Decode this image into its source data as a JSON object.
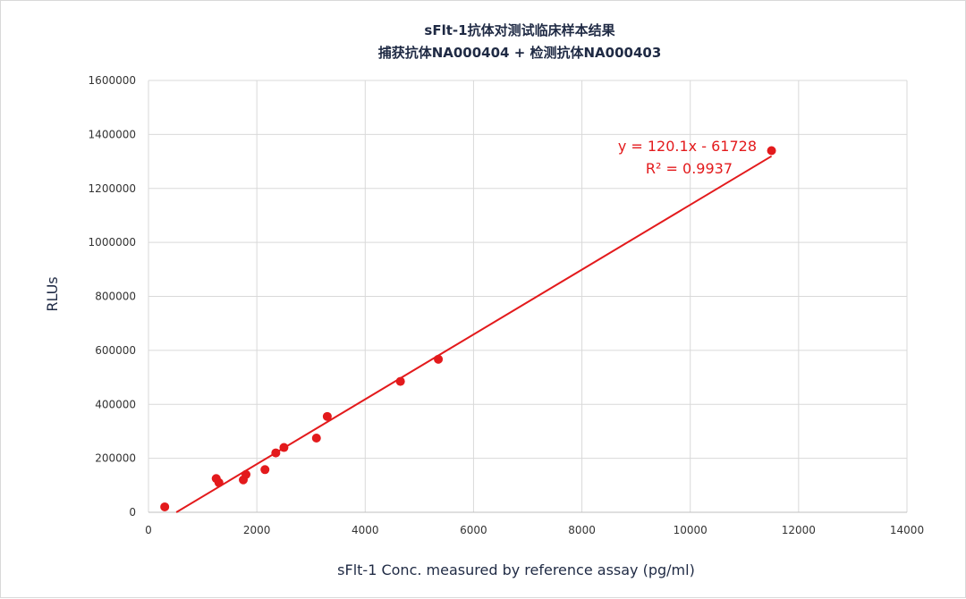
{
  "chart_data": {
    "type": "scatter",
    "title": "sFlt-1抗体对测试临床样本结果",
    "subtitle": "捕获抗体NA000404 + 检测抗体NA000403",
    "xlabel": "sFlt-1 Conc. measured by reference assay (pg/ml)",
    "ylabel": "RLUs",
    "xlim": [
      0,
      14000
    ],
    "ylim": [
      0,
      1600000
    ],
    "xticks": [
      0,
      2000,
      4000,
      6000,
      8000,
      10000,
      12000,
      14000
    ],
    "yticks": [
      0,
      200000,
      400000,
      600000,
      800000,
      1000000,
      1200000,
      1400000,
      1600000
    ],
    "grid": true,
    "colors": {
      "points": "#e31a1c",
      "trendline": "#e31a1c",
      "grid": "#d9d9d9"
    },
    "series": [
      {
        "x": [
          300,
          1250,
          1300,
          1750,
          1800,
          2150,
          2350,
          2500,
          3100,
          3300,
          4650,
          5350,
          11500
        ],
        "y": [
          20000,
          125000,
          110000,
          120000,
          140000,
          158000,
          220000,
          240000,
          275000,
          355000,
          485000,
          567000,
          1340000
        ]
      }
    ],
    "trendline": {
      "slope": 120.1,
      "intercept": -61728,
      "equation": "y = 120.1x - 61728",
      "r_squared": "R² = 0.9937"
    }
  }
}
